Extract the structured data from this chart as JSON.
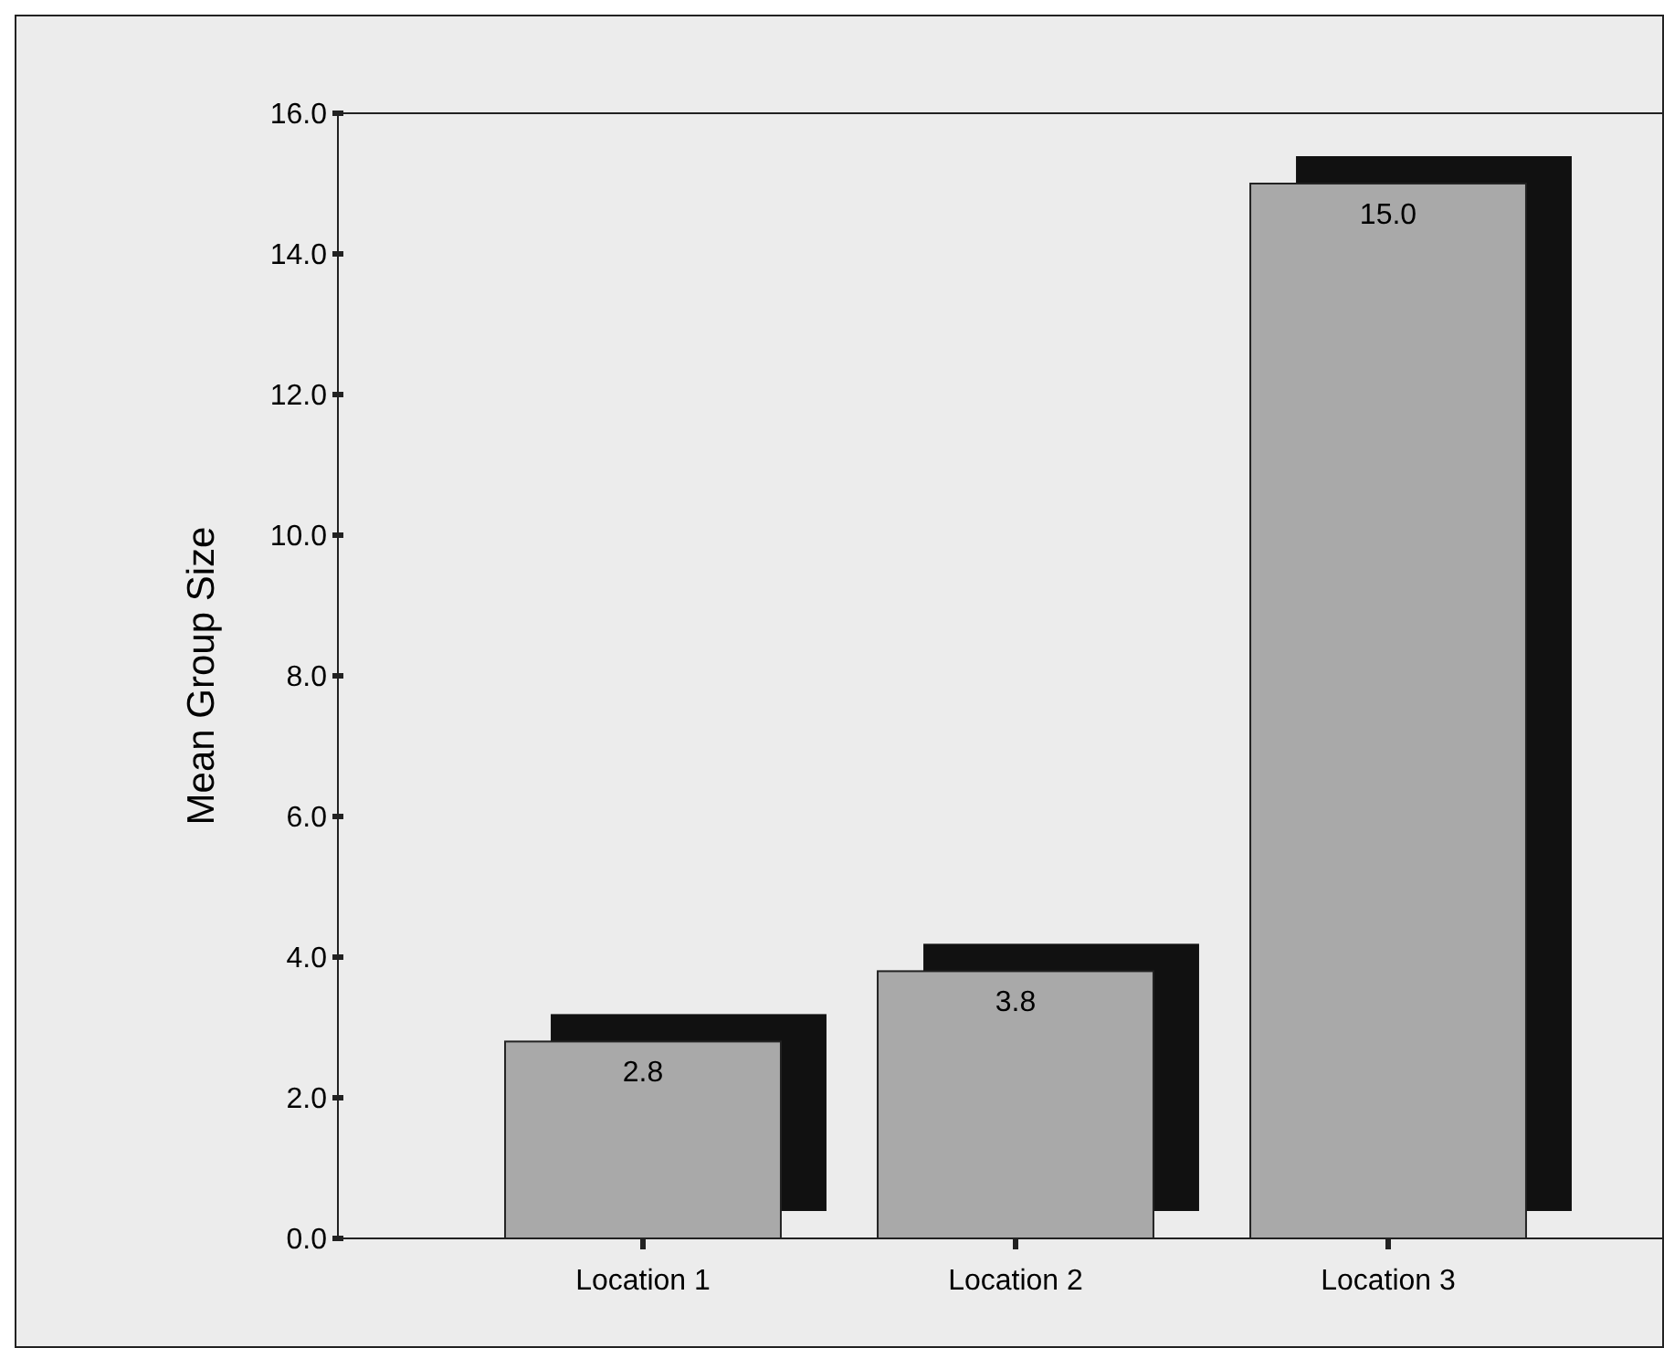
{
  "chart_data": {
    "type": "bar",
    "ylabel": "Mean Group Size",
    "categories": [
      "Location 1",
      "Location 2",
      "Location 3"
    ],
    "values": [
      2.8,
      3.8,
      15.0
    ],
    "value_labels": [
      "2.8",
      "3.8",
      "15.0"
    ],
    "color": "#a9a9a9",
    "ylim": [
      0,
      16
    ],
    "yticks": [
      {
        "value": 0,
        "label": "0.0"
      },
      {
        "value": 2,
        "label": "2.0"
      },
      {
        "value": 4,
        "label": "4.0"
      },
      {
        "value": 6,
        "label": "6.0"
      },
      {
        "value": 8,
        "label": "8.0"
      },
      {
        "value": 10,
        "label": "10.0"
      },
      {
        "value": 12,
        "label": "12.0"
      },
      {
        "value": 14,
        "label": "14.0"
      },
      {
        "value": 16,
        "label": "16.0"
      }
    ],
    "grid": false
  }
}
